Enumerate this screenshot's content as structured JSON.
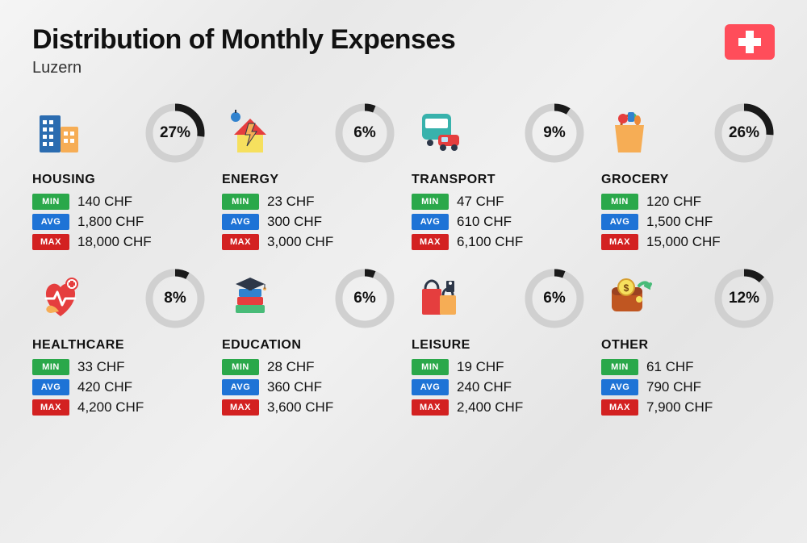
{
  "title": "Distribution of Monthly Expenses",
  "subtitle": "Luzern",
  "flag_color": "#ff4d5a",
  "donut": {
    "track_color": "#d0d0d0",
    "progress_color": "#1a1a1a",
    "stroke_width": 9,
    "radius": 32
  },
  "badges": {
    "min": {
      "label": "MIN",
      "color": "#2aa84a"
    },
    "avg": {
      "label": "AVG",
      "color": "#1e73d6"
    },
    "max": {
      "label": "MAX",
      "color": "#d32121"
    }
  },
  "label_fontsize": 16,
  "value_fontsize": 17,
  "categories": [
    {
      "name": "HOUSING",
      "pct": 27,
      "pct_label": "27%",
      "min": "140 CHF",
      "avg": "1,800 CHF",
      "max": "18,000 CHF",
      "icon": "housing"
    },
    {
      "name": "ENERGY",
      "pct": 6,
      "pct_label": "6%",
      "min": "23 CHF",
      "avg": "300 CHF",
      "max": "3,000 CHF",
      "icon": "energy"
    },
    {
      "name": "TRANSPORT",
      "pct": 9,
      "pct_label": "9%",
      "min": "47 CHF",
      "avg": "610 CHF",
      "max": "6,100 CHF",
      "icon": "transport"
    },
    {
      "name": "GROCERY",
      "pct": 26,
      "pct_label": "26%",
      "min": "120 CHF",
      "avg": "1,500 CHF",
      "max": "15,000 CHF",
      "icon": "grocery"
    },
    {
      "name": "HEALTHCARE",
      "pct": 8,
      "pct_label": "8%",
      "min": "33 CHF",
      "avg": "420 CHF",
      "max": "4,200 CHF",
      "icon": "healthcare"
    },
    {
      "name": "EDUCATION",
      "pct": 6,
      "pct_label": "6%",
      "min": "28 CHF",
      "avg": "360 CHF",
      "max": "3,600 CHF",
      "icon": "education"
    },
    {
      "name": "LEISURE",
      "pct": 6,
      "pct_label": "6%",
      "min": "19 CHF",
      "avg": "240 CHF",
      "max": "2,400 CHF",
      "icon": "leisure"
    },
    {
      "name": "OTHER",
      "pct": 12,
      "pct_label": "12%",
      "min": "61 CHF",
      "avg": "790 CHF",
      "max": "7,900 CHF",
      "icon": "other"
    }
  ]
}
